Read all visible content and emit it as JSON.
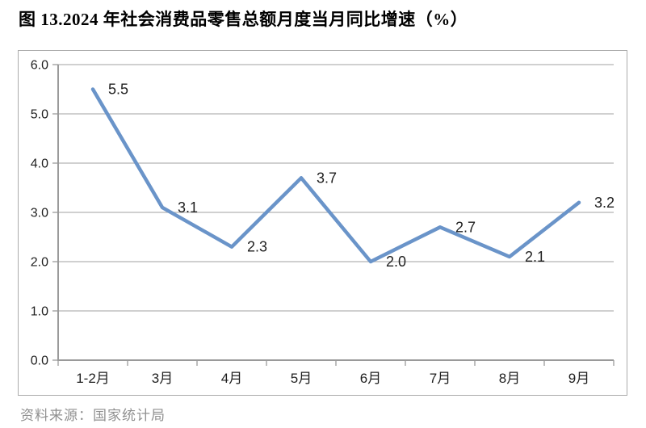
{
  "page": {
    "title": "图 13.2024 年社会消费品零售总额月度当月同比增速（%）",
    "source_note": "资料来源：国家统计局"
  },
  "chart_data": {
    "type": "line",
    "title": "图 13.2024 年社会消费品零售总额月度当月同比增速（%）",
    "categories": [
      "1-2月",
      "3月",
      "4月",
      "5月",
      "6月",
      "7月",
      "8月",
      "9月"
    ],
    "series": [
      {
        "name": "当月同比增速",
        "values": [
          5.5,
          3.1,
          2.3,
          3.7,
          2.0,
          2.7,
          2.1,
          3.2
        ],
        "data_labels": [
          "5.5",
          "3.1",
          "2.3",
          "3.7",
          "2.0",
          "2.7",
          "2.1",
          "3.2"
        ]
      }
    ],
    "xlabel": "",
    "ylabel": "",
    "ylim": [
      0,
      6
    ],
    "y_tick_step": 1,
    "y_tick_labels": [
      "0.0",
      "1.0",
      "2.0",
      "3.0",
      "4.0",
      "5.0",
      "6.0"
    ],
    "grid": true,
    "legend_position": "none",
    "colors": {
      "line": "#6A94C9",
      "gridline": "#b3b3b3",
      "axis": "#9a9a9a",
      "tick_label": "#1f1f1f",
      "data_label": "#1f1f1f"
    }
  }
}
